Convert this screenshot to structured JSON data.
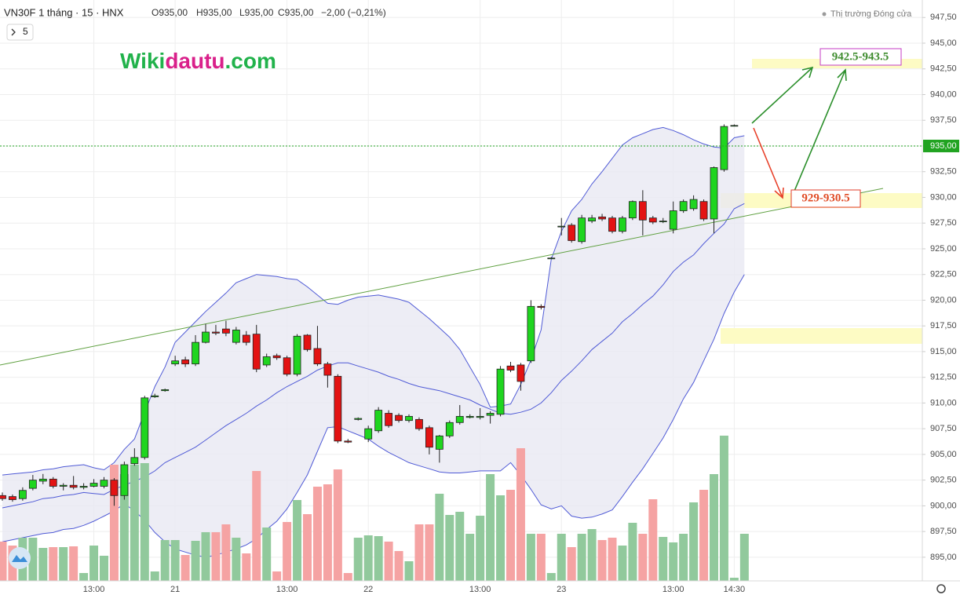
{
  "chart_data": {
    "type": "candlestick",
    "title": "VN30F 1 tháng · 15 · HNX",
    "ohlc_legend": [
      "O935,00",
      "H935,00",
      "L935,00",
      "C935,00",
      "−2,00 (−0,21%)"
    ],
    "market_status": "Thị trường Đóng cửa",
    "interval_button": "5",
    "watermark": [
      "Wiki",
      "dautu",
      ".com"
    ],
    "annotations": [
      "942.5-943.5",
      "929-930.5"
    ],
    "categories": [
      null,
      null,
      null,
      null,
      null,
      null,
      null,
      null,
      null,
      "13:00",
      null,
      null,
      null,
      null,
      null,
      null,
      null,
      "21",
      null,
      null,
      null,
      null,
      null,
      null,
      null,
      null,
      null,
      null,
      "13:00",
      null,
      null,
      null,
      null,
      null,
      null,
      null,
      "22",
      null,
      null,
      null,
      null,
      null,
      null,
      null,
      null,
      null,
      null,
      "13:00",
      null,
      null,
      null,
      null,
      null,
      null,
      null,
      "23",
      null,
      null,
      null,
      null,
      null,
      null,
      null,
      null,
      null,
      null,
      "13:00",
      null,
      null,
      null,
      null,
      null,
      "14:30",
      null
    ],
    "open": [
      901.0,
      900.9,
      900.7,
      901.7,
      902.4,
      902.6,
      901.9,
      902.0,
      901.8,
      901.9,
      901.9,
      902.5,
      901.0,
      904.1,
      904.7,
      910.6,
      911.2,
      913.8,
      914.2,
      913.8,
      915.9,
      916.9,
      917.2,
      915.9,
      916.6,
      916.7,
      913.7,
      914.6,
      914.4,
      912.8,
      916.6,
      915.3,
      913.8,
      912.6,
      906.3,
      908.4,
      906.5,
      907.3,
      909.0,
      908.8,
      908.3,
      908.4,
      907.6,
      905.5,
      906.8,
      908.1,
      908.6,
      908.6,
      908.8,
      908.9,
      913.6,
      913.7,
      914.1,
      919.4,
      924.1,
      927.2,
      927.3,
      925.7,
      927.7,
      928.1,
      928.0,
      926.7,
      928.0,
      929.6,
      928.0,
      927.7,
      926.9,
      928.7,
      928.9,
      929.6,
      927.9,
      932.7,
      937.0,
      null
    ],
    "high": [
      901.3,
      901.1,
      901.8,
      903.0,
      903.1,
      902.8,
      902.2,
      902.9,
      902.2,
      902.6,
      902.8,
      902.7,
      904.3,
      905.6,
      910.7,
      910.9,
      911.4,
      914.6,
      914.5,
      916.6,
      917.7,
      917.6,
      918.0,
      917.4,
      917.0,
      917.6,
      914.8,
      914.8,
      914.6,
      916.7,
      916.7,
      917.5,
      914.0,
      912.8,
      906.5,
      908.6,
      907.8,
      909.6,
      909.3,
      909.0,
      908.9,
      908.6,
      907.8,
      906.9,
      908.3,
      909.8,
      908.9,
      909.5,
      909.2,
      913.6,
      914.0,
      913.9,
      920.0,
      919.6,
      924.2,
      928.0,
      927.5,
      928.3,
      928.3,
      928.4,
      928.2,
      928.2,
      929.7,
      930.7,
      928.2,
      928.0,
      929.6,
      929.8,
      930.2,
      929.8,
      933.0,
      937.1,
      937.1,
      null
    ],
    "low": [
      900.5,
      900.4,
      900.5,
      901.5,
      902.1,
      901.7,
      901.5,
      901.6,
      901.6,
      901.8,
      901.7,
      900.0,
      900.6,
      903.9,
      904.5,
      910.5,
      911.1,
      913.6,
      913.5,
      913.6,
      915.8,
      916.6,
      916.5,
      915.7,
      915.6,
      913.0,
      913.5,
      914.2,
      912.6,
      912.6,
      915.0,
      913.6,
      911.5,
      906.1,
      906.1,
      908.3,
      906.2,
      907.1,
      907.6,
      908.1,
      908.1,
      907.3,
      905.0,
      904.2,
      906.6,
      907.9,
      908.5,
      908.4,
      908.0,
      908.7,
      913.0,
      911.2,
      913.9,
      919.1,
      924.0,
      926.3,
      925.6,
      925.5,
      927.5,
      927.7,
      926.5,
      926.5,
      927.8,
      926.3,
      927.4,
      927.5,
      926.5,
      928.5,
      928.7,
      927.7,
      926.5,
      932.5,
      936.9,
      null
    ],
    "close": [
      900.7,
      900.6,
      901.5,
      902.5,
      902.6,
      901.9,
      902.0,
      901.8,
      901.9,
      902.2,
      902.5,
      901.0,
      904.0,
      904.7,
      910.5,
      910.7,
      911.3,
      914.1,
      913.8,
      915.9,
      916.9,
      916.8,
      916.8,
      917.1,
      915.9,
      913.3,
      914.5,
      914.4,
      912.8,
      916.5,
      915.2,
      913.8,
      912.7,
      906.3,
      906.2,
      908.5,
      907.5,
      909.3,
      907.8,
      908.3,
      908.7,
      907.5,
      905.7,
      906.8,
      908.1,
      908.7,
      908.7,
      908.7,
      909.0,
      913.3,
      913.2,
      912.1,
      919.4,
      919.3,
      924.1,
      927.2,
      925.8,
      928.0,
      928.0,
      927.9,
      926.7,
      928.0,
      929.6,
      927.8,
      927.6,
      927.7,
      928.7,
      929.6,
      929.8,
      927.9,
      932.9,
      936.9,
      937.0,
      null
    ],
    "volume": [
      50,
      45,
      55,
      55,
      42,
      43,
      43,
      44,
      10,
      45,
      32,
      148,
      136,
      148,
      150,
      12,
      52,
      52,
      33,
      51,
      62,
      62,
      72,
      55,
      35,
      140,
      68,
      12,
      75,
      103,
      85,
      120,
      123,
      142,
      10,
      55,
      58,
      57,
      50,
      38,
      25,
      72,
      72,
      111,
      84,
      88,
      60,
      83,
      136,
      109,
      116,
      169,
      60,
      60,
      10,
      60,
      43,
      60,
      66,
      52,
      55,
      45,
      74,
      60,
      104,
      56,
      49,
      60,
      100,
      116,
      136,
      185,
      4,
      60
    ],
    "bb_upper": [
      903.0,
      903.1,
      903.2,
      903.3,
      903.5,
      903.6,
      903.8,
      903.9,
      904.0,
      903.7,
      903.5,
      904.2,
      905.5,
      906.5,
      909.1,
      911.6,
      913.5,
      915.9,
      916.9,
      917.9,
      918.9,
      919.8,
      920.7,
      921.7,
      922.1,
      922.5,
      922.4,
      922.3,
      922.1,
      922.0,
      921.3,
      920.5,
      919.7,
      919.6,
      920.0,
      920.3,
      920.4,
      920.5,
      920.3,
      920.1,
      919.8,
      919.0,
      918.2,
      917.3,
      916.4,
      915.2,
      913.5,
      911.8,
      909.6,
      909.7,
      909.9,
      911.8,
      914.2,
      917.1,
      924.0,
      926.7,
      928.7,
      929.8,
      931.3,
      932.5,
      933.8,
      935.1,
      935.8,
      936.2,
      936.6,
      936.8,
      936.5,
      936.1,
      935.6,
      935.2,
      934.9,
      934.8,
      935.8,
      936.0
    ],
    "bb_basis": [
      899.8,
      900.0,
      900.2,
      900.4,
      900.7,
      900.8,
      901.0,
      901.1,
      901.3,
      901.2,
      901.1,
      901.6,
      902.0,
      902.4,
      902.8,
      903.4,
      904.2,
      904.7,
      905.2,
      905.7,
      906.4,
      907.1,
      907.8,
      908.4,
      909.0,
      909.7,
      910.3,
      911.0,
      911.6,
      912.1,
      912.6,
      913.2,
      913.6,
      913.9,
      913.9,
      913.6,
      913.3,
      913.0,
      912.6,
      912.3,
      911.9,
      911.6,
      911.4,
      911.2,
      910.9,
      910.6,
      910.3,
      909.8,
      909.4,
      909.0,
      908.9,
      909.1,
      909.4,
      910.0,
      911.0,
      912.2,
      913.1,
      914.1,
      915.2,
      916.0,
      916.8,
      917.9,
      918.7,
      919.6,
      920.4,
      921.5,
      922.8,
      923.7,
      924.4,
      925.5,
      926.5,
      927.4,
      928.9,
      929.4
    ],
    "bb_lower": [
      896.5,
      896.7,
      896.9,
      897.1,
      897.3,
      897.4,
      897.7,
      897.8,
      898.1,
      898.5,
      899.0,
      899.5,
      900.2,
      899.5,
      898.6,
      897.4,
      896.5,
      895.8,
      895.5,
      895.2,
      895.0,
      895.2,
      895.5,
      895.8,
      896.2,
      896.8,
      897.7,
      898.5,
      899.7,
      901.3,
      903.0,
      905.3,
      907.6,
      907.7,
      907.3,
      906.9,
      906.5,
      905.8,
      905.2,
      904.7,
      904.2,
      903.9,
      903.6,
      903.3,
      903.2,
      903.2,
      903.3,
      903.4,
      903.4,
      903.4,
      904.2,
      903.0,
      901.6,
      900.1,
      899.7,
      900.0,
      899.0,
      898.8,
      898.9,
      899.2,
      899.6,
      900.9,
      902.3,
      903.6,
      905.1,
      906.6,
      908.4,
      910.4,
      912.0,
      914.1,
      916.2,
      918.7,
      920.8,
      922.5
    ],
    "last_price": {
      "value": 935,
      "label": "935,00"
    },
    "ylim": [
      892.7,
      949.2
    ],
    "yticks": [
      {
        "value": 895,
        "label": "895,00"
      },
      {
        "value": 897.5,
        "label": "897,50"
      },
      {
        "value": 900,
        "label": "900,00"
      },
      {
        "value": 902.5,
        "label": "902,50"
      },
      {
        "value": 905,
        "label": "905,00"
      },
      {
        "value": 907.5,
        "label": "907,50"
      },
      {
        "value": 910,
        "label": "910,00"
      },
      {
        "value": 912.5,
        "label": "912,50"
      },
      {
        "value": 915,
        "label": "915,00"
      },
      {
        "value": 917.5,
        "label": "917,50"
      },
      {
        "value": 920,
        "label": "920,00"
      },
      {
        "value": 922.5,
        "label": "922,50"
      },
      {
        "value": 925,
        "label": "925,00"
      },
      {
        "value": 927.5,
        "label": "927,50"
      },
      {
        "value": 930,
        "label": "930,00"
      },
      {
        "value": 932.5,
        "label": "932,50"
      },
      {
        "value": 935,
        "label": "935,00"
      },
      {
        "value": 937.5,
        "label": "937,50"
      },
      {
        "value": 940,
        "label": "940,00"
      },
      {
        "value": 942.5,
        "label": "942,50"
      },
      {
        "value": 945,
        "label": "945,00"
      },
      {
        "value": 947.5,
        "label": "947,50"
      }
    ],
    "grid": true,
    "up_color": "#1fd51f",
    "down_color": "#e31313",
    "volume_up_color": "#91c99c",
    "volume_down_color": "#f5a3a3",
    "band_color": "#4f5ad6",
    "band_fill": "#e8e8f3",
    "last_price_color": "#21a321"
  }
}
